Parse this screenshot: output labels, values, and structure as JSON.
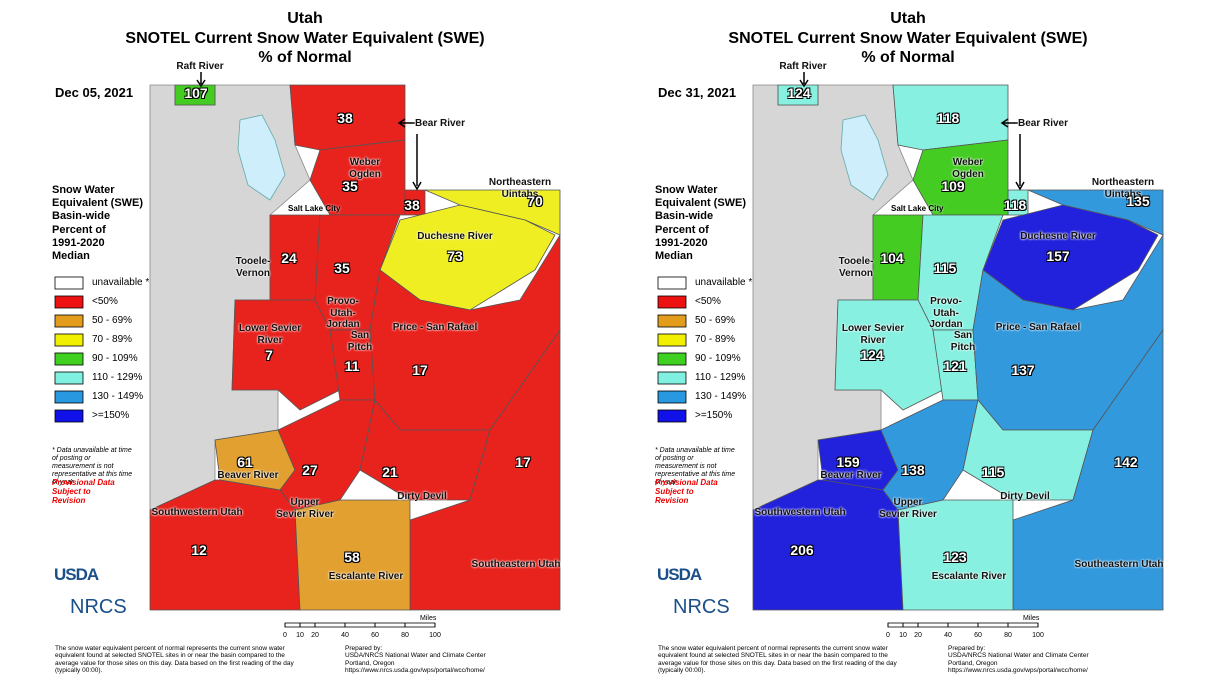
{
  "title": "Utah",
  "subtitle": "SNOTEL Current Snow Water Equivalent (SWE)",
  "subtitle2": "% of Normal",
  "basins": [
    "Raft River",
    null,
    "Bear River",
    "Weber\nOgden",
    "Northeastern Uintahs",
    "Duchesne River",
    "Tooele-\nVernon",
    "Provo-\nUtah-\nJordan",
    "Lower Sevier\nRiver",
    "San\nPitch",
    "Price - San Rafael",
    "Beaver River",
    "Upper\nSevier River",
    "Dirty Devil",
    "Southeastern Utah",
    "Southwestern Utah",
    "Escalante River"
  ],
  "maps": [
    {
      "date": "Dec 05, 2021",
      "values": [
        107,
        38,
        38,
        35,
        70,
        73,
        24,
        35,
        7,
        11,
        17,
        61,
        27,
        21,
        17,
        12,
        58
      ],
      "colors": [
        "#44cc22",
        "#e8231e",
        "#e8231e",
        "#e8231e",
        "#eeee22",
        "#eeee22",
        "#e8231e",
        "#e8231e",
        "#e8231e",
        "#e8231e",
        "#e8231e",
        "#e2a030",
        "#e8231e",
        "#e8231e",
        "#e8231e",
        "#e8231e",
        "#e2a030"
      ]
    },
    {
      "date": "Dec 31, 2021",
      "values": [
        124,
        118,
        118,
        109,
        135,
        157,
        104,
        115,
        124,
        121,
        137,
        159,
        138,
        115,
        142,
        206,
        123
      ],
      "colors": [
        "#88f0e0",
        "#88f0e0",
        "#88f0e0",
        "#44cc22",
        "#3399dd",
        "#2222dd",
        "#44cc22",
        "#88f0e0",
        "#88f0e0",
        "#88f0e0",
        "#3399dd",
        "#2222dd",
        "#3399dd",
        "#88f0e0",
        "#3399dd",
        "#2222dd",
        "#88f0e0"
      ]
    }
  ],
  "legend": {
    "title": "Snow Water\nEquivalent (SWE)\nBasin-wide\nPercent of\n1991-2020\nMedian",
    "items": [
      {
        "label": "unavailable *",
        "color": "#ffffff"
      },
      {
        "label": "<50%",
        "color": "#ee1111"
      },
      {
        "label": "50 - 69%",
        "color": "#e39c1c"
      },
      {
        "label": "70 - 89%",
        "color": "#f0f000"
      },
      {
        "label": "90 - 109%",
        "color": "#40d020"
      },
      {
        "label": "110 - 129%",
        "color": "#80f0e0"
      },
      {
        "label": "130 - 149%",
        "color": "#2898e0"
      },
      {
        "label": ">=150%",
        "color": "#1010e8"
      }
    ],
    "note": "* Data unavailable at time of posting or measurement is not representative at this time of year",
    "provisional": "Provisional Data Subject to Revision"
  },
  "city": "Salt Lake City",
  "usda": "USDA",
  "nrcs": "NRCS",
  "scale": {
    "label": "Miles",
    "ticks": [
      0,
      10,
      20,
      40,
      60,
      80,
      100
    ]
  },
  "footer": "The snow water equivalent percent of normal represents the current snow water equivalent found at selected SNOTEL sites in or near the basin compared to the average value for those sites on this day. Data based on the first reading of the day (typically 00:00).",
  "prepared": "Prepared by:\nUSDA/NRCS National Water and Climate Center\nPortland, Oregon\nhttps://www.nrcs.usda.gov/wps/portal/wcc/home/"
}
